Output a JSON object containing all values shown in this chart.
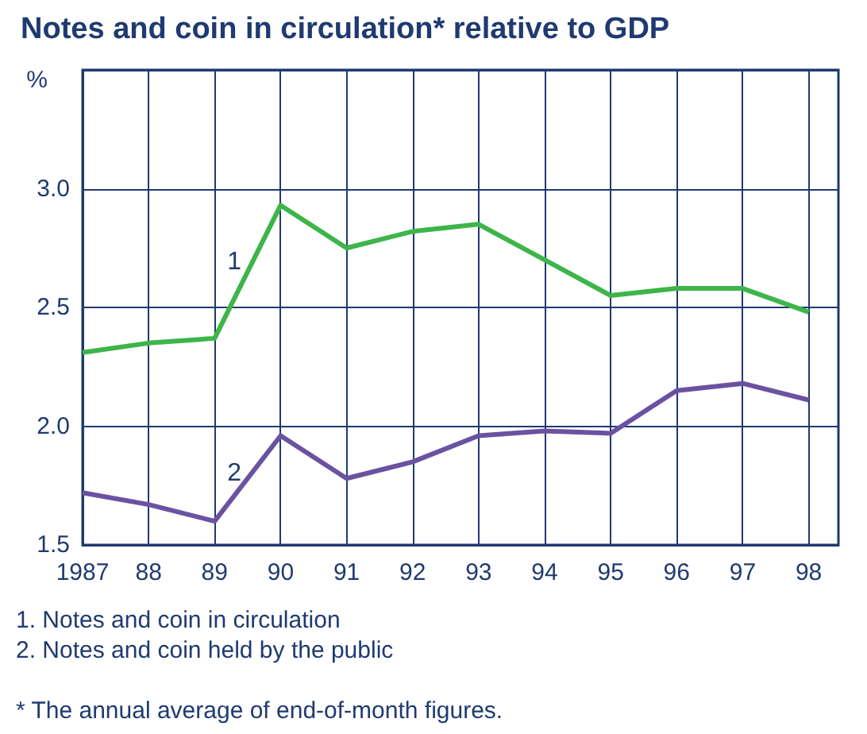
{
  "chart_data": {
    "type": "line",
    "title": "Notes and coin in circulation* relative to GDP",
    "ylabel": "%",
    "x": [
      1987,
      1988,
      1989,
      1990,
      1991,
      1992,
      1993,
      1994,
      1995,
      1996,
      1997,
      1998
    ],
    "xlim": [
      1987,
      1998.45
    ],
    "xticks": [
      {
        "value": 1987,
        "label": "1987"
      },
      {
        "value": 1988,
        "label": "88"
      },
      {
        "value": 1989,
        "label": "89"
      },
      {
        "value": 1990,
        "label": "90"
      },
      {
        "value": 1991,
        "label": "91"
      },
      {
        "value": 1992,
        "label": "92"
      },
      {
        "value": 1993,
        "label": "93"
      },
      {
        "value": 1994,
        "label": "94"
      },
      {
        "value": 1995,
        "label": "95"
      },
      {
        "value": 1996,
        "label": "96"
      },
      {
        "value": 1997,
        "label": "97"
      },
      {
        "value": 1998,
        "label": "98"
      }
    ],
    "ylim": [
      1.5,
      3.5
    ],
    "yticks": [
      {
        "value": 1.5,
        "label": "1.5"
      },
      {
        "value": 2,
        "label": "2.0"
      },
      {
        "value": 2.5,
        "label": "2.5"
      },
      {
        "value": 3,
        "label": "3.0"
      },
      {
        "value": 3.5,
        "label": null
      }
    ],
    "grid": true,
    "legend": false,
    "marker": "none",
    "line_style": "solid",
    "series": [
      {
        "name": "1",
        "color": "#3db54a",
        "values": [
          2.31,
          2.35,
          2.37,
          2.93,
          2.75,
          2.82,
          2.85,
          2.7,
          2.55,
          2.58,
          2.58,
          2.48
        ]
      },
      {
        "name": "2",
        "color": "#6a52a2",
        "values": [
          1.72,
          1.67,
          1.6,
          1.96,
          1.78,
          1.85,
          1.96,
          1.98,
          1.97,
          2.15,
          2.18,
          2.11
        ]
      }
    ],
    "annotations": [
      "1. Notes and coin in circulation",
      "2. Notes and coin held by the public",
      "* The annual average of end-of-month figures."
    ]
  }
}
